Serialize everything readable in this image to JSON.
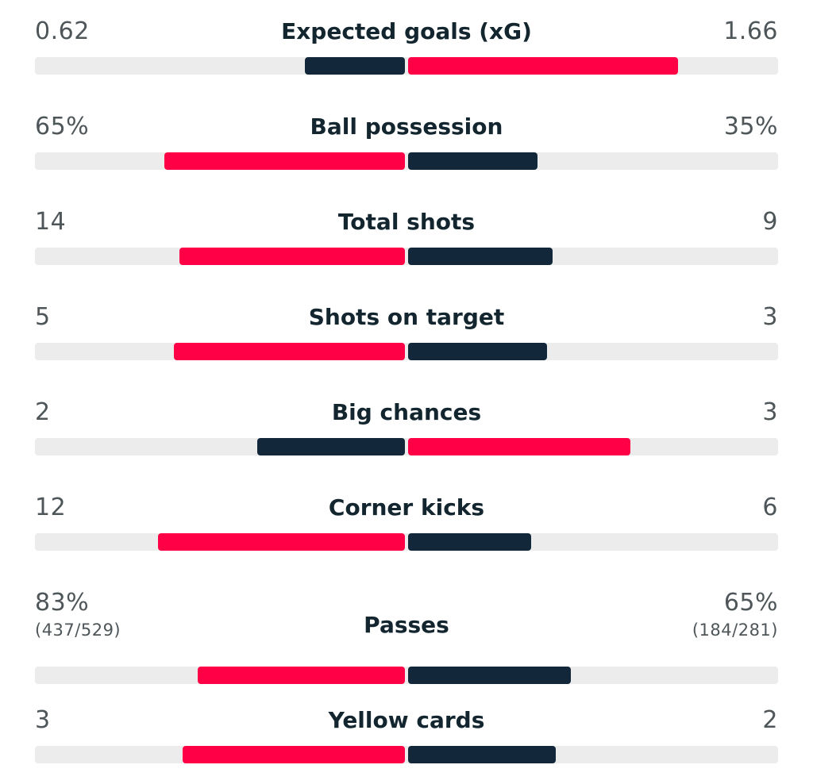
{
  "colors": {
    "home": "#ff0046",
    "away": "#12283a",
    "track": "#ececec",
    "label": "#13262f",
    "value": "#4e5659"
  },
  "stats": [
    {
      "label": "Expected goals (xG)",
      "left": "0.62",
      "right": "1.66",
      "left_fraction": 0.27,
      "right_fraction": 0.73,
      "left_color": "dark",
      "right_color": "red"
    },
    {
      "label": "Ball possession",
      "left": "65%",
      "right": "35%",
      "left_fraction": 0.65,
      "right_fraction": 0.35,
      "left_color": "red",
      "right_color": "dark"
    },
    {
      "label": "Total shots",
      "left": "14",
      "right": "9",
      "left_fraction": 0.61,
      "right_fraction": 0.39,
      "left_color": "red",
      "right_color": "dark"
    },
    {
      "label": "Shots on target",
      "left": "5",
      "right": "3",
      "left_fraction": 0.625,
      "right_fraction": 0.375,
      "left_color": "red",
      "right_color": "dark"
    },
    {
      "label": "Big chances",
      "left": "2",
      "right": "3",
      "left_fraction": 0.4,
      "right_fraction": 0.6,
      "left_color": "dark",
      "right_color": "red"
    },
    {
      "label": "Corner kicks",
      "left": "12",
      "right": "6",
      "left_fraction": 0.667,
      "right_fraction": 0.333,
      "left_color": "red",
      "right_color": "dark"
    },
    {
      "label": "Passes",
      "left": "83%",
      "right": "65%",
      "left_sub": "(437/529)",
      "right_sub": "(184/281)",
      "left_fraction": 0.561,
      "right_fraction": 0.439,
      "left_color": "red",
      "right_color": "dark"
    },
    {
      "label": "Yellow cards",
      "left": "3",
      "right": "2",
      "left_fraction": 0.6,
      "right_fraction": 0.4,
      "left_color": "red",
      "right_color": "dark"
    }
  ]
}
